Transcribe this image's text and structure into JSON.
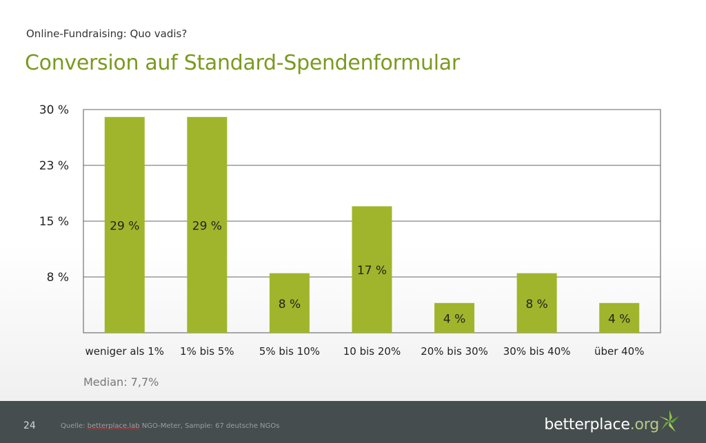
{
  "header": {
    "subtitle": "Online-Fundraising: Quo vadis?",
    "title": "Conversion auf Standard-Spendenformular"
  },
  "chart_data": {
    "type": "bar",
    "categories": [
      "weniger als 1%",
      "1% bis 5%",
      "5% bis 10%",
      "10 bis 20%",
      "20% bis 30%",
      "30% bis 40%",
      "über 40%"
    ],
    "values": [
      29,
      29,
      8,
      17,
      4,
      8,
      4
    ],
    "data_labels": [
      "29 %",
      "29 %",
      "8 %",
      "17 %",
      "4 %",
      "8 %",
      "4 %"
    ],
    "ytick_labels": [
      "30 %",
      "23 %",
      "15 %",
      "8 %"
    ],
    "yticks": [
      30,
      22.5,
      15,
      7.5
    ],
    "ylim": [
      0,
      30
    ],
    "grid": true,
    "bar_color": "#a0b52b",
    "annotation": "Median: 7,7%"
  },
  "footer": {
    "page_number": "24",
    "source_prefix": "Quelle: ",
    "source_link": "betterplace.lab",
    "source_rest": " NGO-Meter, Sample: 67 deutsche NGOs",
    "logo_main": "betterplace",
    "logo_suffix": ".org"
  },
  "colors": {
    "accent": "#7a9a1e",
    "bar": "#a0b52b",
    "footer_bg": "#464d4e"
  }
}
